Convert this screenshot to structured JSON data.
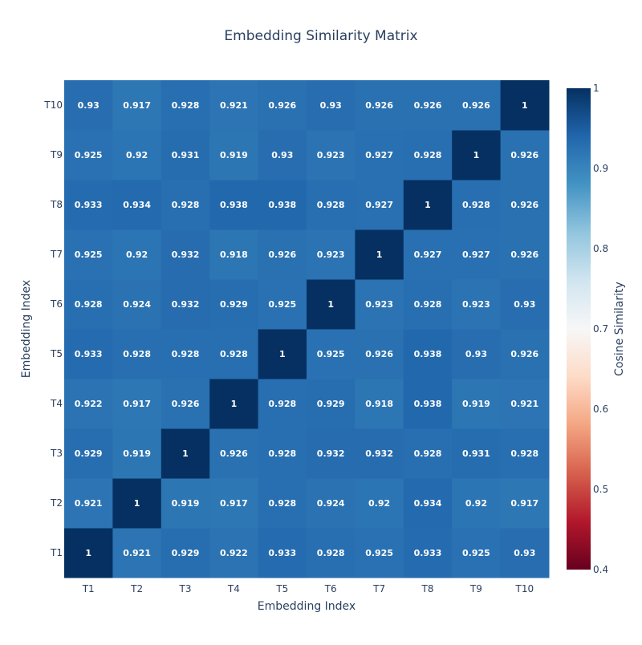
{
  "chart_data": {
    "type": "heatmap",
    "title": "Embedding Similarity Matrix",
    "xlabel": "Embedding Index",
    "ylabel": "Embedding Index",
    "x": [
      "T1",
      "T2",
      "T3",
      "T4",
      "T5",
      "T6",
      "T7",
      "T8",
      "T9",
      "T10"
    ],
    "y": [
      "T1",
      "T2",
      "T3",
      "T4",
      "T5",
      "T6",
      "T7",
      "T8",
      "T9",
      "T10"
    ],
    "z": [
      [
        1,
        0.921,
        0.929,
        0.922,
        0.933,
        0.928,
        0.925,
        0.933,
        0.925,
        0.93
      ],
      [
        0.921,
        1,
        0.919,
        0.917,
        0.928,
        0.924,
        0.92,
        0.934,
        0.92,
        0.917
      ],
      [
        0.929,
        0.919,
        1,
        0.926,
        0.928,
        0.932,
        0.932,
        0.928,
        0.931,
        0.928
      ],
      [
        0.922,
        0.917,
        0.926,
        1,
        0.928,
        0.929,
        0.918,
        0.938,
        0.919,
        0.921
      ],
      [
        0.933,
        0.928,
        0.928,
        0.928,
        1,
        0.925,
        0.926,
        0.938,
        0.93,
        0.926
      ],
      [
        0.928,
        0.924,
        0.932,
        0.929,
        0.925,
        1,
        0.923,
        0.928,
        0.923,
        0.93
      ],
      [
        0.925,
        0.92,
        0.932,
        0.918,
        0.926,
        0.923,
        1,
        0.927,
        0.927,
        0.926
      ],
      [
        0.933,
        0.934,
        0.928,
        0.938,
        0.938,
        0.928,
        0.927,
        1,
        0.928,
        0.926
      ],
      [
        0.925,
        0.92,
        0.931,
        0.919,
        0.93,
        0.923,
        0.927,
        0.928,
        1,
        0.926
      ],
      [
        0.93,
        0.917,
        0.928,
        0.921,
        0.926,
        0.93,
        0.926,
        0.926,
        0.926,
        1
      ]
    ],
    "zmin": 0.4,
    "zmax": 1,
    "colorscale": "RdBu",
    "colorbar": {
      "title": "Cosine Similarity",
      "ticks": [
        0.4,
        0.5,
        0.6,
        0.7,
        0.8,
        0.9,
        1
      ]
    },
    "colors": {
      "text_dark": "#2a3f5f",
      "cell_text": "#ffffff",
      "background": "#ffffff"
    }
  }
}
